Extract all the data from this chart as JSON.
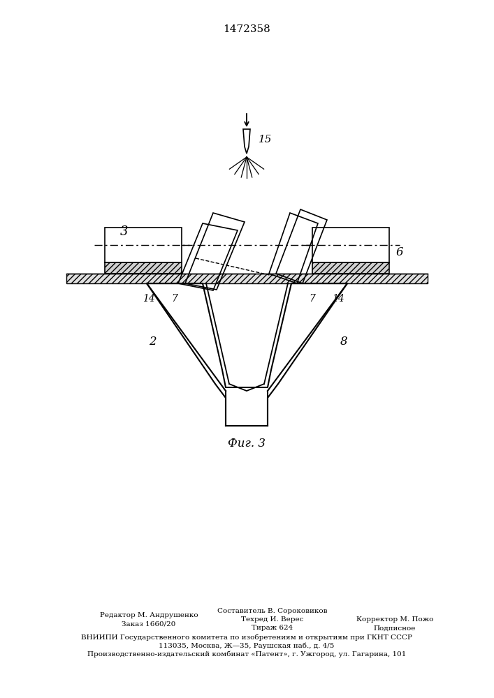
{
  "title": "1472358",
  "fig_label": "Фиг. 3",
  "bg_color": "#ffffff",
  "line_color": "#000000",
  "label_3": "3",
  "label_6": "6",
  "label_7": "7",
  "label_14": "14",
  "label_2": "2",
  "label_8": "8",
  "label_15": "15",
  "footer_col1_line1": "Редактор М. Андрушенко",
  "footer_col1_line2": "Заказ 1660/20",
  "footer_col2_line1": "Составитель В. Сороковиков",
  "footer_col2_line2": "Техред И. Верес",
  "footer_col2_line3": "Тираж 624",
  "footer_col3_line1": "Корректор М. Пожо",
  "footer_col3_line2": "Подписное",
  "footer_line4": "ВНИИПИ Государственного комитета по изобретениям и открытиям при ГКНТ СССР",
  "footer_line5": "113035, Москва, Ж—35, Раушская наб., д. 4/5",
  "footer_line6": "Производственно-издательский комбинат «Патент», г. Ужгород, ул. Гагарина, 101"
}
